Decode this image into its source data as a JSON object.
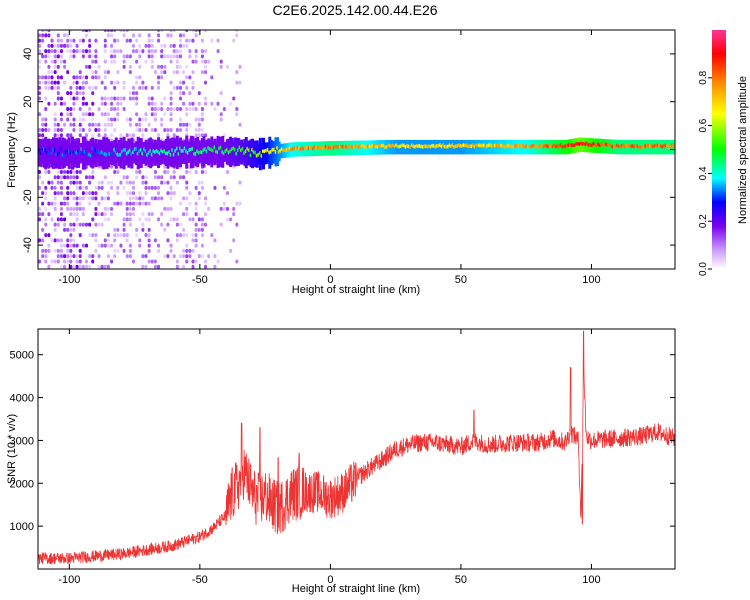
{
  "title": "C2E6.2025.142.00.44.E26",
  "chart_data": [
    {
      "type": "heatmap",
      "xlabel": "Height of straight line (km)",
      "ylabel": "Frequency (Hz)",
      "xlim": [
        -112,
        132
      ],
      "ylim": [
        -50,
        50
      ],
      "x_ticks": [
        -100,
        -50,
        0,
        50,
        100
      ],
      "y_ticks": [
        -40,
        -20,
        0,
        20,
        40
      ],
      "colorbar": {
        "label": "Normalized spectral amplitude",
        "range": [
          0,
          1
        ],
        "ticks": [
          "0.0",
          "0.2",
          "0.4",
          "0.6",
          "0.8"
        ],
        "colormap": [
          "#ffffff",
          "#cc99ff",
          "#7700ee",
          "#0000ff",
          "#00ffff",
          "#00ff00",
          "#ffff00",
          "#ff8800",
          "#ff0000",
          "#ff3399"
        ]
      },
      "signal_track": {
        "description": "narrow band near 0 Hz; strongest amplitude at positive heights",
        "points": [
          {
            "x": -100,
            "f": -1.5,
            "amp": 0.35
          },
          {
            "x": -75,
            "f": -1.5,
            "amp": 0.45
          },
          {
            "x": -50,
            "f": -1,
            "amp": 0.5
          },
          {
            "x": -35,
            "f": -1,
            "amp": 0.55
          },
          {
            "x": -28,
            "f": -2,
            "amp": 0.6
          },
          {
            "x": -15,
            "f": 0,
            "amp": 0.75
          },
          {
            "x": 0,
            "f": 0.5,
            "amp": 0.8
          },
          {
            "x": 25,
            "f": 1,
            "amp": 0.7
          },
          {
            "x": 50,
            "f": 1,
            "amp": 0.7
          },
          {
            "x": 75,
            "f": 1,
            "amp": 0.75
          },
          {
            "x": 90,
            "f": 1,
            "amp": 0.85
          },
          {
            "x": 95,
            "f": 2,
            "amp": 0.9
          },
          {
            "x": 110,
            "f": 1,
            "amp": 0.8
          },
          {
            "x": 130,
            "f": 1,
            "amp": 0.8
          }
        ]
      }
    },
    {
      "type": "line",
      "xlabel": "Height of straight line (km)",
      "ylabel": "SNR (10 * v/v)",
      "xlim": [
        -112,
        132
      ],
      "ylim": [
        0,
        5600
      ],
      "x_ticks": [
        -100,
        -50,
        0,
        50,
        100
      ],
      "y_ticks": [
        1000,
        2000,
        3000,
        4000,
        5000
      ],
      "color": "#ee3333",
      "series": [
        {
          "x": [
            -112,
            -100,
            -90,
            -80,
            -70,
            -60,
            -50,
            -45,
            -40,
            -38,
            -35,
            -33,
            -30,
            -28,
            -25,
            -22,
            -20,
            -18,
            -15,
            -10,
            -5,
            0,
            5,
            10,
            15,
            20,
            25,
            30,
            35,
            40,
            50,
            55,
            60,
            70,
            80,
            85,
            90,
            92,
            95,
            96,
            97,
            98,
            100,
            110,
            120,
            125,
            132
          ],
          "y": [
            250,
            250,
            300,
            350,
            450,
            550,
            750,
            950,
            1250,
            1700,
            2000,
            2300,
            1800,
            1600,
            1700,
            1500,
            1400,
            1500,
            1750,
            1800,
            1800,
            1650,
            1800,
            2100,
            2350,
            2550,
            2800,
            2900,
            2950,
            2950,
            2850,
            3000,
            2900,
            2950,
            2950,
            3050,
            2950,
            3200,
            3000,
            1150,
            4700,
            3100,
            3000,
            3050,
            3100,
            3200,
            3050
          ]
        }
      ],
      "spikes": [
        {
          "x": -34,
          "y": 3400
        },
        {
          "x": -27,
          "y": 3300
        },
        {
          "x": -20,
          "y": 2600
        },
        {
          "x": -12,
          "y": 2700
        },
        {
          "x": 55,
          "y": 3700
        },
        {
          "x": 92,
          "y": 4700
        },
        {
          "x": 97,
          "y": 5550
        },
        {
          "x": 96.5,
          "y": 1050
        }
      ]
    }
  ]
}
